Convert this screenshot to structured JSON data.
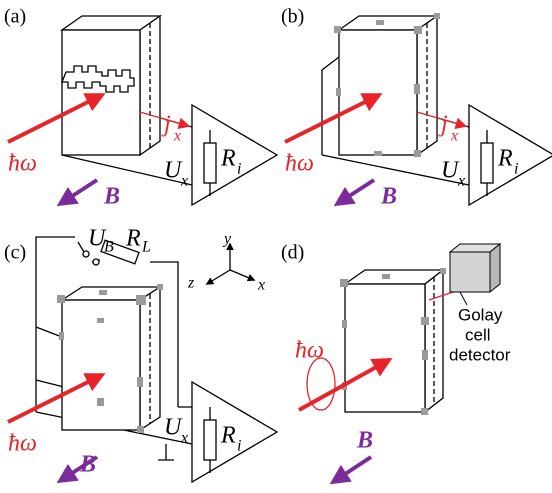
{
  "panels": [
    {
      "label": "(a)",
      "photon": "ħω",
      "current": {
        "main": "j",
        "sub": "x"
      },
      "voltage": {
        "main": "U",
        "sub": "x"
      },
      "resistor": {
        "main": "R",
        "sub": "i"
      },
      "field": "B"
    },
    {
      "label": "(b)",
      "photon": "ħω",
      "current": {
        "main": "j",
        "sub": "x"
      },
      "voltage": {
        "main": "U",
        "sub": "x"
      },
      "resistor": {
        "main": "R",
        "sub": "i"
      },
      "field": "B"
    },
    {
      "label": "(c)",
      "photon": "ħω",
      "bias": {
        "main": "U",
        "sub": "B"
      },
      "load": {
        "main": "R",
        "sub": "L"
      },
      "axes": [
        "y",
        "z",
        "x"
      ],
      "voltage": {
        "main": "U",
        "sub": "x"
      },
      "resistor": {
        "main": "R",
        "sub": "i"
      },
      "field": "B"
    },
    {
      "label": "(d)",
      "photon": "ħω",
      "detector": [
        "Golay",
        "cell",
        "detector"
      ],
      "field": "B"
    }
  ]
}
